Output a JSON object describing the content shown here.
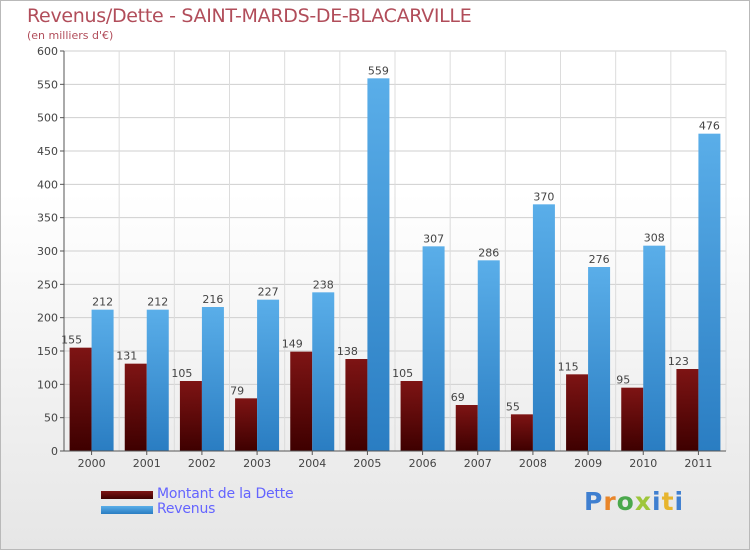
{
  "title": "Revenus/Dette - SAINT-MARDS-DE-BLACARVILLE",
  "subtitle": "(en milliers d'€)",
  "brand": "Proxiti",
  "chart_data": {
    "type": "bar",
    "categories": [
      "2000",
      "2001",
      "2002",
      "2003",
      "2004",
      "2005",
      "2006",
      "2007",
      "2008",
      "2009",
      "2010",
      "2011"
    ],
    "series": [
      {
        "name": "Montant de la Dette",
        "values": [
          155,
          131,
          105,
          79,
          149,
          138,
          105,
          69,
          55,
          115,
          95,
          123
        ],
        "color": "#6e0a0a"
      },
      {
        "name": "Revenus",
        "values": [
          212,
          212,
          216,
          227,
          238,
          559,
          307,
          286,
          370,
          276,
          308,
          476
        ],
        "color": "#4aa3e8"
      }
    ],
    "ylim": [
      0,
      600
    ],
    "yticks": [
      0,
      50,
      100,
      150,
      200,
      250,
      300,
      350,
      400,
      450,
      500,
      550,
      600
    ],
    "xlabel": "",
    "ylabel": "",
    "grid": true,
    "legend_position": "bottom-left"
  }
}
